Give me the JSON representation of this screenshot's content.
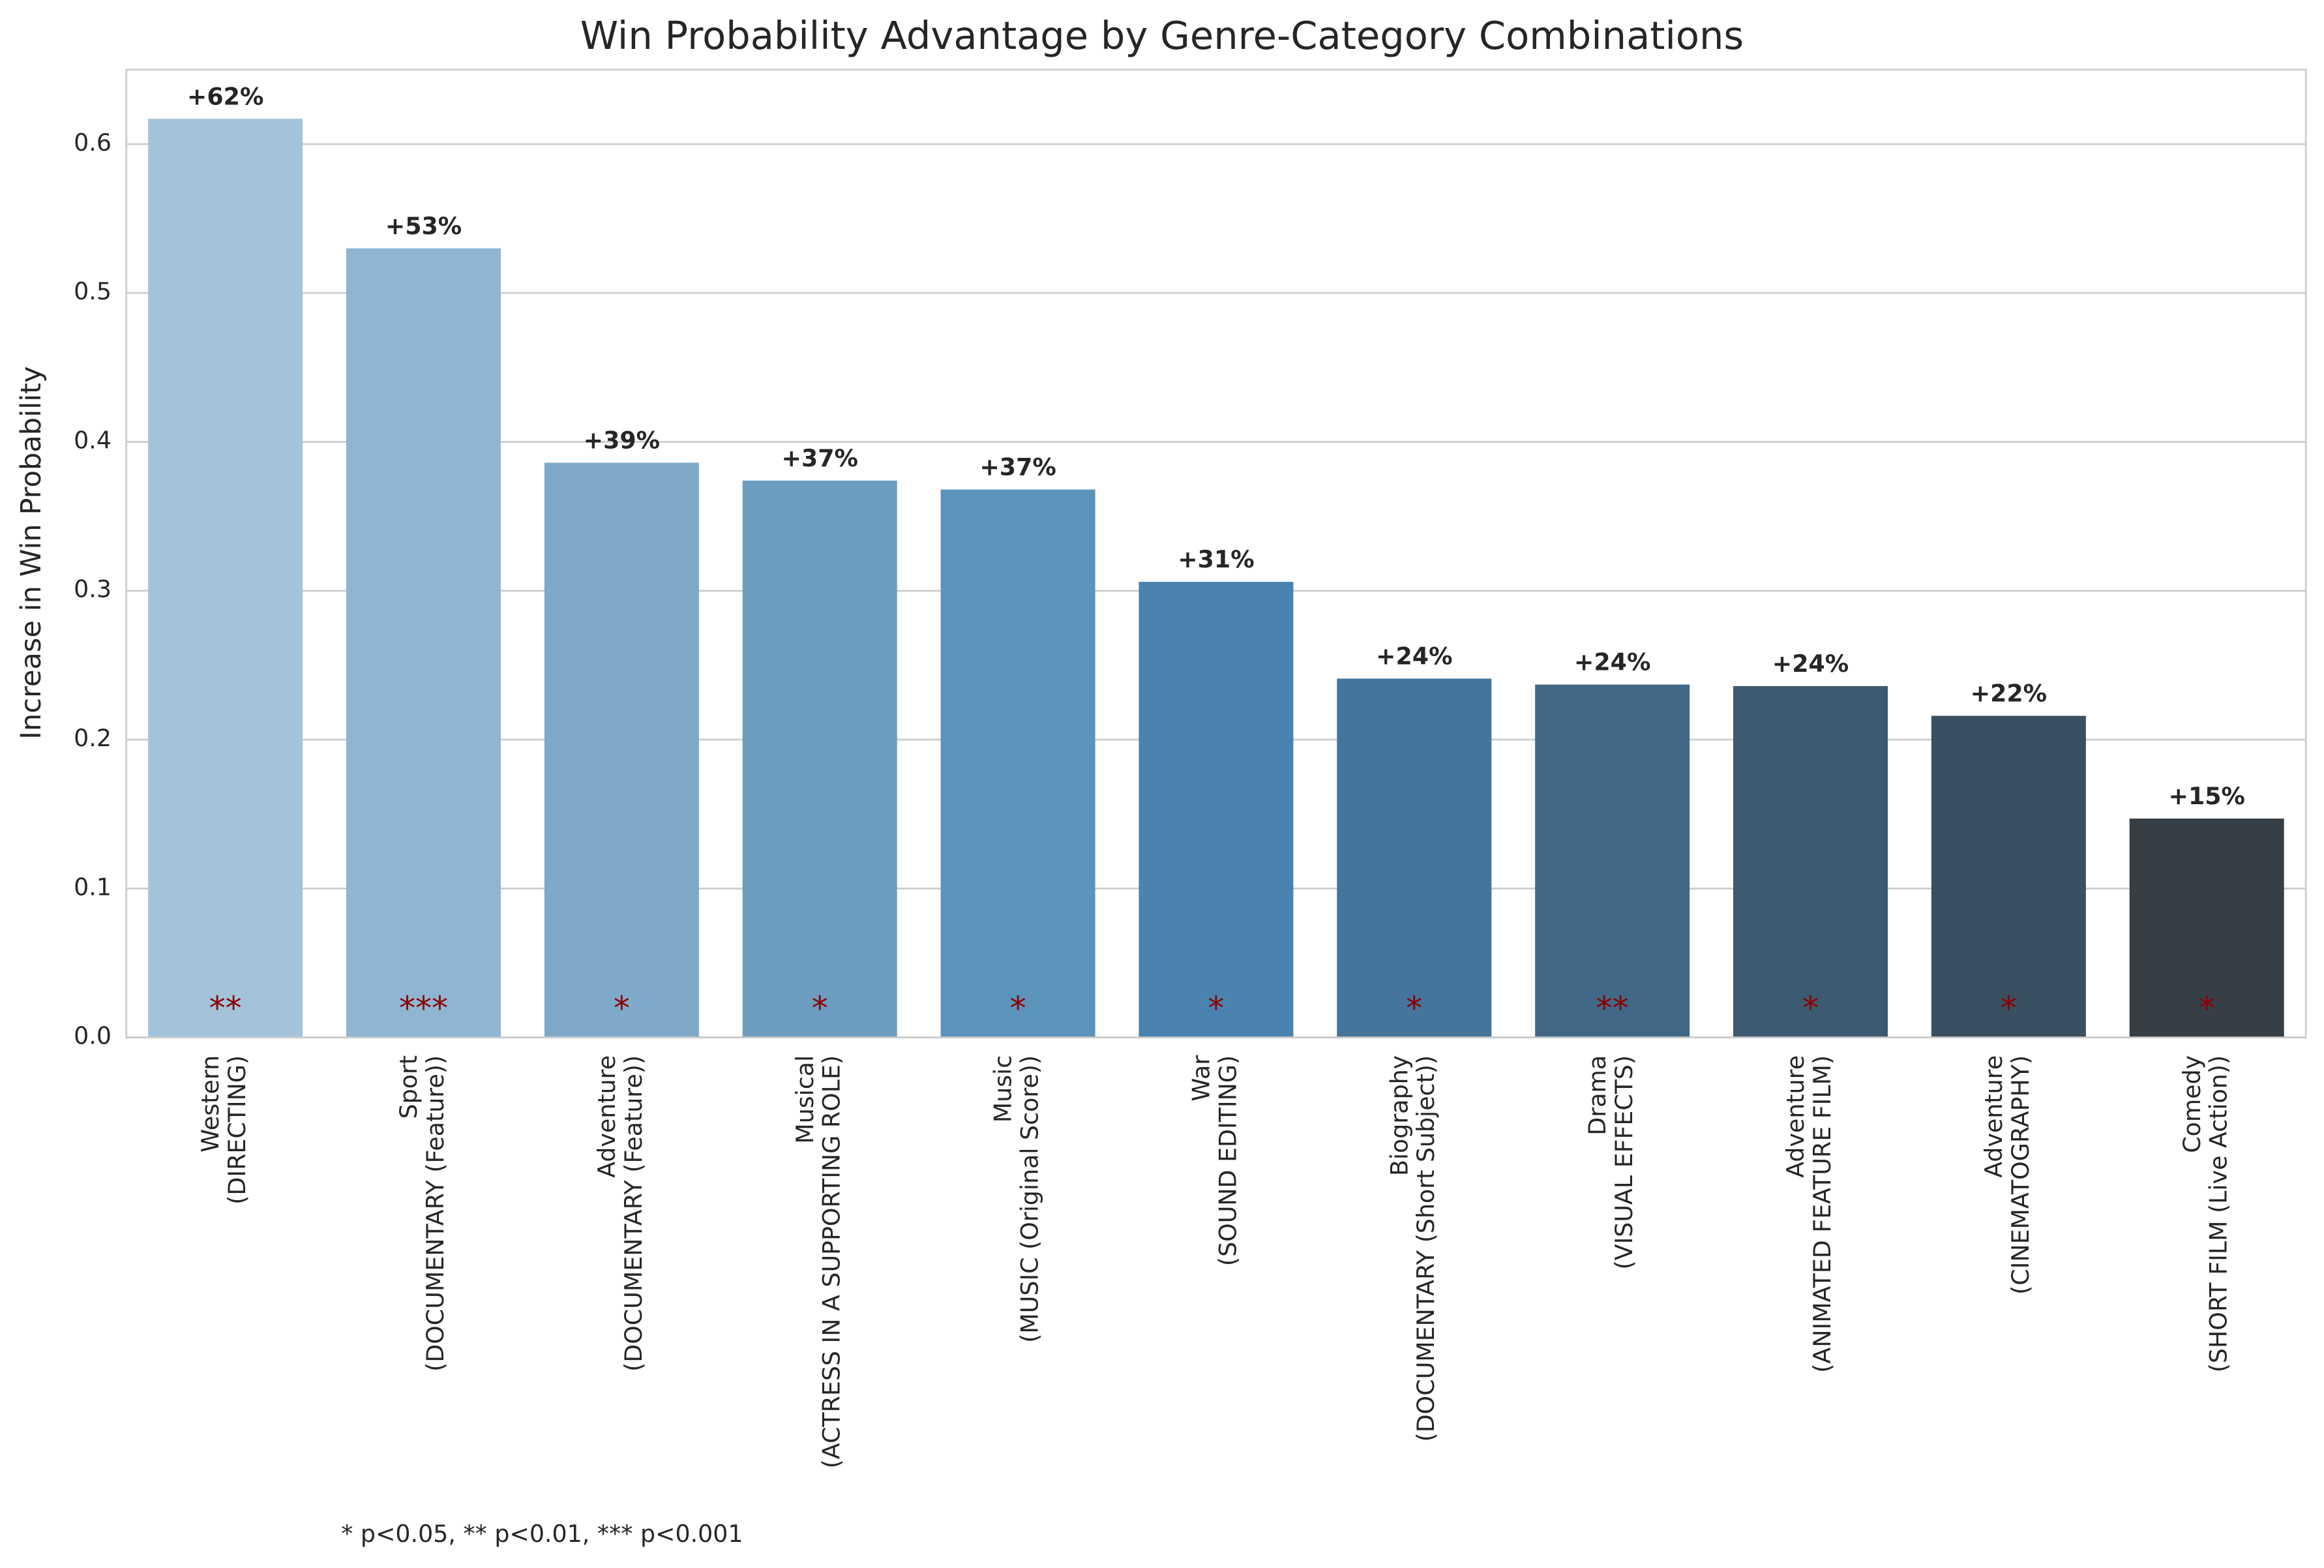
{
  "chart_data": {
    "type": "bar",
    "title": "Win Probability Advantage by Genre-Category Combinations",
    "ylabel": "Increase in Win Probability",
    "categories": [
      [
        "Western",
        "(DIRECTING)"
      ],
      [
        "Sport",
        "(DOCUMENTARY (Feature))"
      ],
      [
        "Adventure",
        "(DOCUMENTARY (Feature))"
      ],
      [
        "Musical",
        "(ACTRESS IN A SUPPORTING ROLE)"
      ],
      [
        "Music",
        "(MUSIC (Original Score))"
      ],
      [
        "War",
        "(SOUND EDITING)"
      ],
      [
        "Biography",
        "(DOCUMENTARY (Short Subject))"
      ],
      [
        "Drama",
        "(VISUAL EFFECTS)"
      ],
      [
        "Adventure",
        "(ANIMATED FEATURE FILM)"
      ],
      [
        "Adventure",
        "(CINEMATOGRAPHY)"
      ],
      [
        "Comedy",
        "(SHORT FILM (Live Action))"
      ]
    ],
    "values": [
      0.617,
      0.53,
      0.386,
      0.374,
      0.368,
      0.306,
      0.241,
      0.237,
      0.236,
      0.216,
      0.147
    ],
    "value_labels": [
      "+62%",
      "+53%",
      "+39%",
      "+37%",
      "+37%",
      "+31%",
      "+24%",
      "+24%",
      "+24%",
      "+22%",
      "+15%"
    ],
    "colors": [
      "#a3c3da",
      "#8fb5d2",
      "#7ea9c9",
      "#6c9dc1",
      "#5b93ba",
      "#4a83b0",
      "#46759b",
      "#416886",
      "#3c5a71",
      "#3a4f5f",
      "#363f46"
    ],
    "significance": [
      "**",
      "***",
      "*",
      "*",
      "*",
      "*",
      "*",
      "**",
      "*",
      "*",
      "*"
    ],
    "significance_color": "#8b0000",
    "footnote": "* p<0.05, ** p<0.01, *** p<0.001",
    "ylim": [
      0,
      0.65
    ],
    "yticks": [
      {
        "value": 0,
        "label": "0.0"
      },
      0.1,
      0.2,
      0.3,
      0.4,
      0.5,
      0.6
    ],
    "grid": true
  }
}
